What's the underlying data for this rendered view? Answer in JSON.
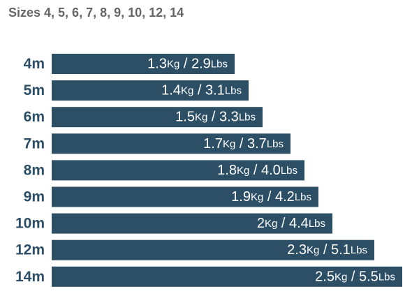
{
  "chart_data": {
    "type": "bar",
    "orientation": "horizontal",
    "title": "Sizes 4, 5, 6, 7, 8, 9, 10, 12, 14",
    "categories": [
      "4m",
      "5m",
      "6m",
      "7m",
      "8m",
      "9m",
      "10m",
      "12m",
      "14m"
    ],
    "values": [
      1.3,
      1.4,
      1.5,
      1.7,
      1.8,
      1.9,
      2,
      2.3,
      2.5
    ],
    "value_labels": [
      "1.3Kg / 2.9Lbs",
      "1.4Kg / 3.1Lbs",
      "1.5Kg / 3.3Lbs",
      "1.7Kg / 3.7Lbs",
      "1.8Kg / 4.0Lbs",
      "1.9Kg / 4.2Lbs",
      "2Kg / 4.4Lbs",
      "2.3Kg / 5.1Lbs",
      "2.5Kg / 5.5Lbs"
    ],
    "color": "#2c4f66"
  }
}
